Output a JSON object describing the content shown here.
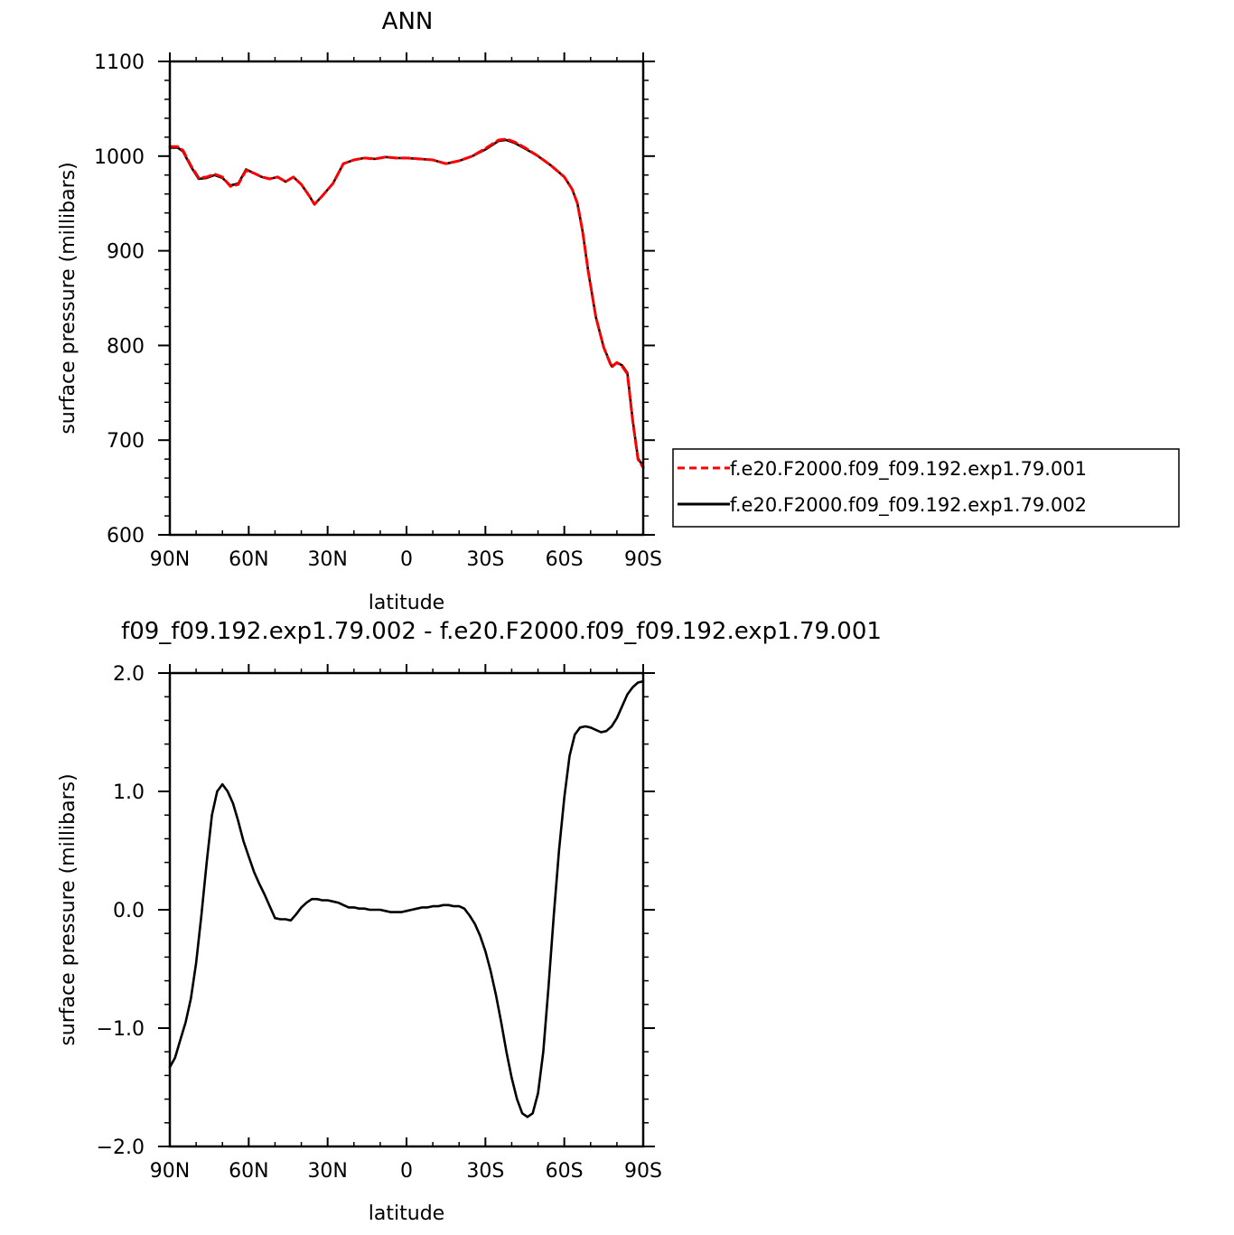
{
  "chart_data": [
    {
      "type": "line",
      "title": "ANN",
      "xlabel": "latitude",
      "ylabel": "surface pressure (millibars)",
      "xlim": [
        90,
        -90
      ],
      "ylim": [
        600,
        1100
      ],
      "x_ticks": [
        {
          "value": 90,
          "label": "90N"
        },
        {
          "value": 60,
          "label": "60N"
        },
        {
          "value": 30,
          "label": "30N"
        },
        {
          "value": 0,
          "label": "0"
        },
        {
          "value": -30,
          "label": "30S"
        },
        {
          "value": -60,
          "label": "60S"
        },
        {
          "value": -90,
          "label": "90S"
        }
      ],
      "y_ticks": [
        {
          "value": 600,
          "label": "600"
        },
        {
          "value": 700,
          "label": "700"
        },
        {
          "value": 800,
          "label": "800"
        },
        {
          "value": 900,
          "label": "900"
        },
        {
          "value": 1000,
          "label": "1000"
        },
        {
          "value": 1100,
          "label": "1100"
        }
      ],
      "legend_position": "right",
      "series": [
        {
          "name": "f.e20.F2000.f09_f09.192.exp1.79.001",
          "color": "#ff0000",
          "style": "dashed",
          "x": [
            90,
            87,
            85,
            82,
            79,
            76,
            73,
            70,
            67,
            64,
            61,
            58,
            55,
            52,
            49,
            46,
            43,
            40,
            37,
            35,
            32,
            28,
            24,
            20,
            16,
            12,
            8,
            4,
            0,
            -5,
            -10,
            -15,
            -20,
            -25,
            -30,
            -35,
            -38,
            -41,
            -45,
            -50,
            -55,
            -60,
            -63,
            -65,
            -67,
            -69,
            -72,
            -75,
            -78,
            -80,
            -82,
            -84,
            -86,
            -88,
            -90
          ],
          "y": [
            1010,
            1010,
            1006,
            990,
            977,
            978,
            981,
            978,
            968,
            970,
            985,
            982,
            978,
            976,
            978,
            973,
            978,
            970,
            958,
            949,
            958,
            971,
            992,
            996,
            998,
            997,
            999,
            998,
            998,
            997,
            996,
            992,
            995,
            1000,
            1008,
            1017,
            1018,
            1015,
            1009,
            1000,
            990,
            978,
            965,
            950,
            920,
            880,
            830,
            798,
            777,
            782,
            778,
            770,
            720,
            680,
            671
          ]
        },
        {
          "name": "f.e20.F2000.f09_f09.192.exp1.79.002",
          "color": "#000000",
          "style": "solid",
          "x": [
            90,
            87,
            85,
            82,
            79,
            76,
            73,
            70,
            67,
            64,
            61,
            58,
            55,
            52,
            49,
            46,
            43,
            40,
            37,
            35,
            32,
            28,
            24,
            20,
            16,
            12,
            8,
            4,
            0,
            -5,
            -10,
            -15,
            -20,
            -25,
            -30,
            -35,
            -38,
            -41,
            -45,
            -50,
            -55,
            -60,
            -63,
            -65,
            -67,
            -69,
            -72,
            -75,
            -78,
            -80,
            -82,
            -84,
            -86,
            -88,
            -90
          ],
          "y": [
            1009,
            1009,
            1005,
            989,
            976,
            977,
            980,
            977,
            969,
            971,
            986,
            982,
            978,
            976,
            978,
            973,
            978,
            970,
            958,
            949,
            958,
            971,
            992,
            996,
            998,
            997,
            999,
            998,
            998,
            997,
            996,
            992,
            995,
            1000,
            1007,
            1016,
            1017,
            1014,
            1008,
            1000,
            990,
            978,
            965,
            950,
            920,
            880,
            830,
            798,
            778,
            782,
            779,
            771,
            721,
            681,
            672
          ]
        }
      ]
    },
    {
      "type": "line",
      "title": "f09_f09.192.exp1.79.002 - f.e20.F2000.f09_f09.192.exp1.79.001",
      "xlabel": "latitude",
      "ylabel": "surface pressure (millibars)",
      "xlim": [
        90,
        -90
      ],
      "ylim": [
        -2.0,
        2.0
      ],
      "x_ticks": [
        {
          "value": 90,
          "label": "90N"
        },
        {
          "value": 60,
          "label": "60N"
        },
        {
          "value": 30,
          "label": "30N"
        },
        {
          "value": 0,
          "label": "0"
        },
        {
          "value": -30,
          "label": "30S"
        },
        {
          "value": -60,
          "label": "60S"
        },
        {
          "value": -90,
          "label": "90S"
        }
      ],
      "y_ticks": [
        {
          "value": -2.0,
          "label": "−2.0"
        },
        {
          "value": -1.0,
          "label": "−1.0"
        },
        {
          "value": 0.0,
          "label": "0.0"
        },
        {
          "value": 1.0,
          "label": "1.0"
        },
        {
          "value": 2.0,
          "label": "2.0"
        }
      ],
      "series": [
        {
          "color": "#000000",
          "style": "solid",
          "x": [
            90,
            88,
            86,
            84,
            82,
            80,
            78,
            76,
            74,
            72,
            70,
            68,
            66,
            64,
            62,
            60,
            58,
            56,
            54,
            52,
            50,
            48,
            46,
            44,
            42,
            40,
            38,
            36,
            34,
            32,
            30,
            28,
            26,
            24,
            22,
            20,
            18,
            16,
            14,
            12,
            10,
            8,
            6,
            4,
            2,
            0,
            -2,
            -4,
            -6,
            -8,
            -10,
            -12,
            -14,
            -16,
            -18,
            -20,
            -22,
            -24,
            -26,
            -28,
            -30,
            -32,
            -34,
            -36,
            -38,
            -40,
            -42,
            -44,
            -46,
            -48,
            -50,
            -52,
            -54,
            -56,
            -58,
            -60,
            -62,
            -64,
            -66,
            -68,
            -70,
            -72,
            -74,
            -76,
            -78,
            -80,
            -82,
            -84,
            -86,
            -88,
            -90
          ],
          "y": [
            -1.33,
            -1.25,
            -1.1,
            -0.95,
            -0.75,
            -0.45,
            -0.05,
            0.4,
            0.8,
            1.0,
            1.06,
            1.0,
            0.9,
            0.75,
            0.58,
            0.45,
            0.32,
            0.22,
            0.13,
            0.03,
            -0.07,
            -0.08,
            -0.08,
            -0.09,
            -0.04,
            0.02,
            0.06,
            0.09,
            0.09,
            0.08,
            0.08,
            0.07,
            0.06,
            0.04,
            0.02,
            0.02,
            0.01,
            0.01,
            0.0,
            0.0,
            0.0,
            -0.01,
            -0.02,
            -0.02,
            -0.02,
            -0.01,
            0.0,
            0.01,
            0.02,
            0.02,
            0.03,
            0.03,
            0.04,
            0.04,
            0.03,
            0.03,
            0.01,
            -0.05,
            -0.12,
            -0.22,
            -0.35,
            -0.52,
            -0.72,
            -0.95,
            -1.2,
            -1.42,
            -1.6,
            -1.72,
            -1.75,
            -1.72,
            -1.55,
            -1.2,
            -0.65,
            -0.05,
            0.5,
            0.95,
            1.3,
            1.48,
            1.54,
            1.55,
            1.54,
            1.52,
            1.5,
            1.51,
            1.55,
            1.62,
            1.72,
            1.82,
            1.88,
            1.92,
            1.93
          ]
        }
      ]
    }
  ]
}
